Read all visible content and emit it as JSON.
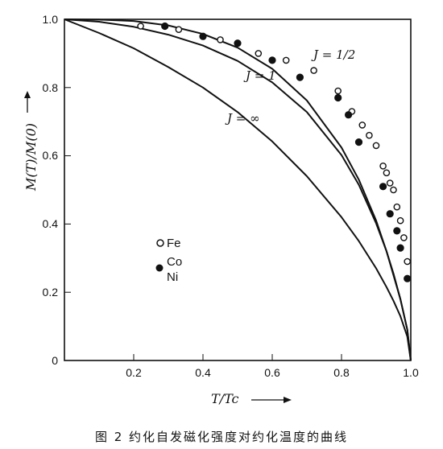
{
  "caption": "图 2   约化自发磁化强度对约化温度的曲线",
  "chart_data": {
    "type": "line",
    "xlabel": "T/Tc",
    "ylabel": "M(T)/M(0)",
    "xlim": [
      0,
      1.0
    ],
    "ylim": [
      0,
      1.0
    ],
    "x_ticks": [
      "0.2",
      "0.4",
      "0.6",
      "0.8",
      "1.0"
    ],
    "y_ticks": [
      "0",
      "0.2",
      "0.4",
      "0.6",
      "0.8",
      "1.0"
    ],
    "grid": false,
    "series": [
      {
        "name": "J=1/2",
        "x": [
          0,
          0.1,
          0.2,
          0.3,
          0.4,
          0.5,
          0.6,
          0.7,
          0.8,
          0.85,
          0.9,
          0.93,
          0.95,
          0.97,
          0.99,
          1.0
        ],
        "y": [
          1.0,
          0.999,
          0.995,
          0.982,
          0.957,
          0.917,
          0.855,
          0.762,
          0.624,
          0.53,
          0.41,
          0.32,
          0.255,
          0.18,
          0.09,
          0.0
        ]
      },
      {
        "name": "J=1",
        "x": [
          0,
          0.1,
          0.2,
          0.3,
          0.4,
          0.5,
          0.6,
          0.7,
          0.8,
          0.85,
          0.9,
          0.93,
          0.95,
          0.97,
          0.99,
          1.0
        ],
        "y": [
          1.0,
          0.993,
          0.978,
          0.955,
          0.923,
          0.878,
          0.815,
          0.728,
          0.602,
          0.515,
          0.402,
          0.32,
          0.25,
          0.18,
          0.09,
          0.0
        ]
      },
      {
        "name": "J=∞",
        "x": [
          0,
          0.1,
          0.2,
          0.3,
          0.4,
          0.5,
          0.6,
          0.7,
          0.8,
          0.85,
          0.9,
          0.93,
          0.95,
          0.97,
          0.99,
          1.0
        ],
        "y": [
          1.0,
          0.96,
          0.915,
          0.86,
          0.8,
          0.728,
          0.642,
          0.54,
          0.42,
          0.35,
          0.27,
          0.215,
          0.175,
          0.13,
          0.07,
          0.0
        ]
      },
      {
        "name": "Fe",
        "x": [
          0.22,
          0.33,
          0.45,
          0.56,
          0.64,
          0.72,
          0.79,
          0.83,
          0.86,
          0.88,
          0.9,
          0.92,
          0.93,
          0.94,
          0.95,
          0.96,
          0.97,
          0.98,
          0.99
        ],
        "y": [
          0.98,
          0.97,
          0.94,
          0.9,
          0.88,
          0.85,
          0.79,
          0.73,
          0.69,
          0.66,
          0.63,
          0.57,
          0.55,
          0.52,
          0.5,
          0.45,
          0.41,
          0.36,
          0.29
        ]
      },
      {
        "name": "Co Ni",
        "x": [
          0.29,
          0.4,
          0.5,
          0.6,
          0.68,
          0.79,
          0.82,
          0.85,
          0.92,
          0.94,
          0.96,
          0.97,
          0.99
        ],
        "y": [
          0.98,
          0.95,
          0.93,
          0.88,
          0.83,
          0.77,
          0.72,
          0.64,
          0.51,
          0.43,
          0.38,
          0.33,
          0.24
        ]
      }
    ],
    "curve_labels": [
      {
        "text": "J = 1/2",
        "x": 0.72,
        "y": 0.905
      },
      {
        "text": "J = 1",
        "x": 0.55,
        "y": 0.845
      },
      {
        "text": "J = ∞",
        "x": 0.47,
        "y": 0.715
      }
    ],
    "legend": {
      "position": "lower-left",
      "entries": [
        {
          "marker": "open-circle",
          "label": "Fe"
        },
        {
          "marker": "filled-circle",
          "label": "Co"
        },
        {
          "marker": "none",
          "label": "Ni"
        }
      ]
    }
  }
}
